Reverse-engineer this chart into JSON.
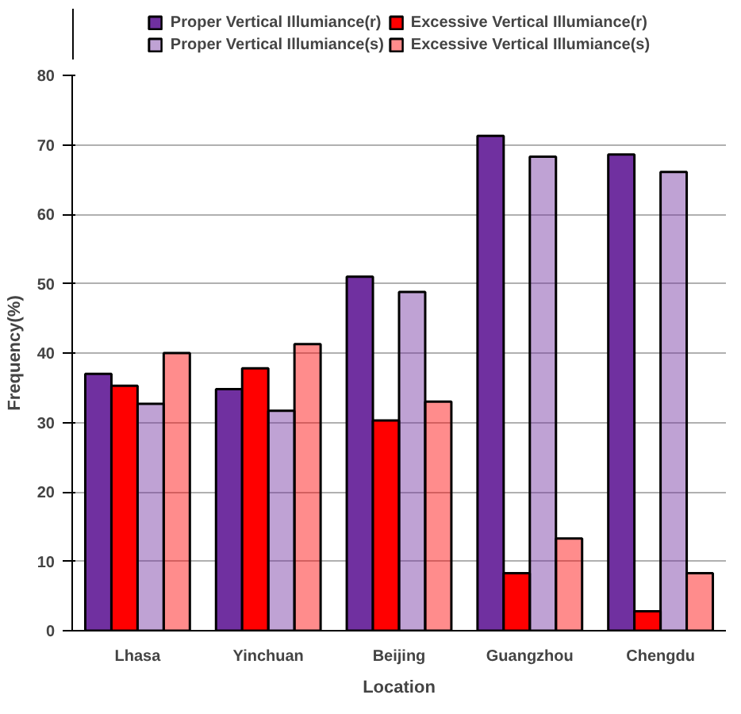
{
  "chart_data": {
    "type": "bar",
    "xlabel": "Location",
    "ylabel": "Frequency(%)",
    "categories": [
      "Lhasa",
      "Yinchuan",
      "Beijing",
      "Guangzhou",
      "Chengdu"
    ],
    "series": [
      {
        "name": "Proper Vertical Illumiance(r)",
        "color": "#7030a0",
        "values": [
          37,
          34.8,
          51,
          71.3,
          68.6
        ]
      },
      {
        "name": "Excessive Vertical Illumiance(r)",
        "color": "#ff0000",
        "values": [
          35.3,
          37.8,
          30.3,
          8.3,
          2.8
        ]
      },
      {
        "name": "Proper Vertical Illumiance(s)",
        "color": "#7030a0",
        "values": [
          32.7,
          31.7,
          48.8,
          68.3,
          66.1
        ]
      },
      {
        "name": "Excessive Vertical Illumiance(s)",
        "color": "#ff0000",
        "values": [
          40,
          41.3,
          33,
          13.3,
          8.3
        ]
      }
    ],
    "ylim": [
      0,
      80
    ],
    "yticks": [
      0,
      10,
      20,
      30,
      40,
      50,
      60,
      70,
      80
    ],
    "grid": "y",
    "legend": "top"
  }
}
